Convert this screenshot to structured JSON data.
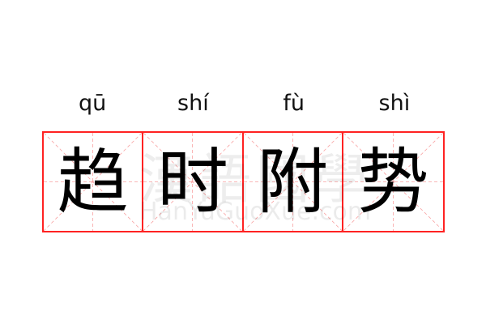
{
  "idiom": {
    "characters": [
      {
        "hanzi": "趋",
        "pinyin": "qū"
      },
      {
        "hanzi": "时",
        "pinyin": "shí"
      },
      {
        "hanzi": "附",
        "pinyin": "fù"
      },
      {
        "hanzi": "势",
        "pinyin": "shì"
      }
    ]
  },
  "watermark": {
    "chinese": "漢語國學",
    "latin": "HanYuGuoXue.com"
  },
  "colors": {
    "grid_border": "#ff2222",
    "guide_lines": "#f8a0a0",
    "text": "#000000"
  }
}
